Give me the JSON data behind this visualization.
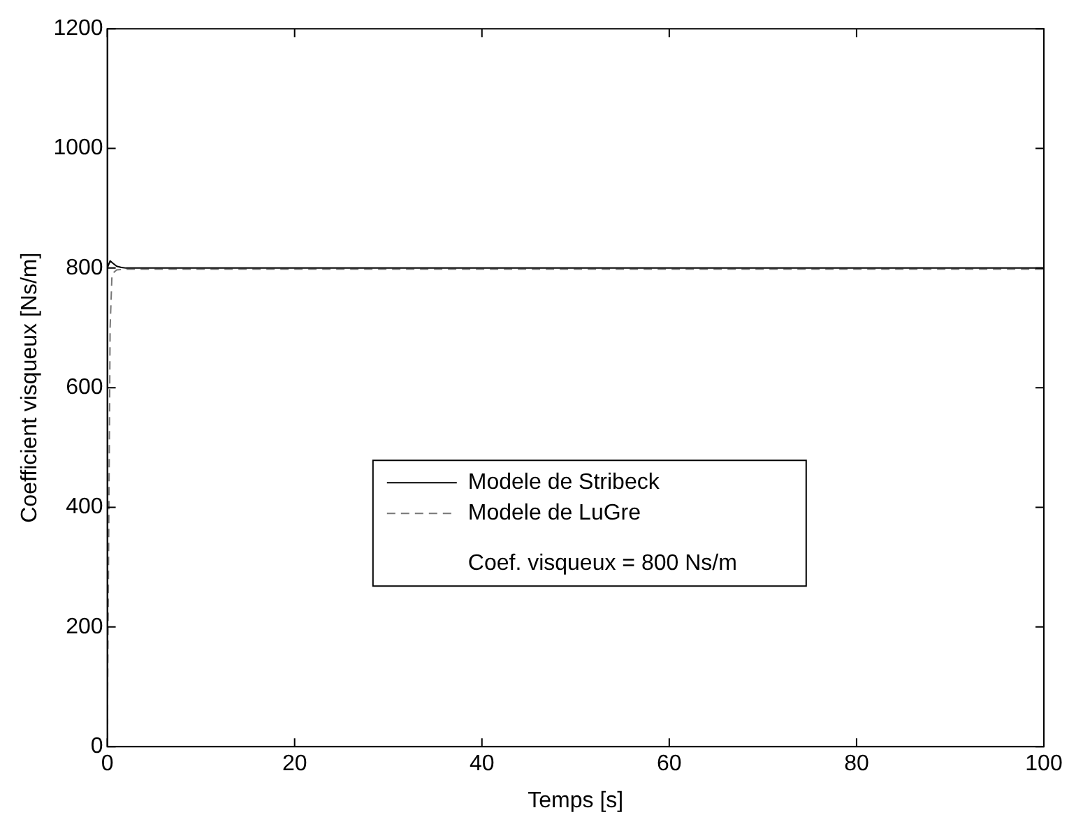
{
  "chart_data": {
    "type": "line",
    "xlabel": "Temps [s]",
    "ylabel": "Coefficient visqueux [Ns/m]",
    "xlim": [
      0,
      100
    ],
    "xticks": [
      0,
      20,
      40,
      60,
      80,
      100
    ],
    "ylim": [
      0,
      1200
    ],
    "yticks": [
      0,
      200,
      400,
      600,
      800,
      1000,
      1200
    ],
    "grid": false,
    "legend": "bottom",
    "marker": "none",
    "annotations": [
      "Coef. visqueux = 800 Ns/m"
    ],
    "series": [
      {
        "name": "Modele de Stribeck",
        "color": "#000000",
        "line_style": "solid",
        "x": [
          0,
          0.3,
          0.6,
          1,
          1.5,
          2,
          100
        ],
        "values": [
          800,
          812,
          808,
          803,
          801,
          800,
          800
        ]
      },
      {
        "name": "Modele de LuGre",
        "color": "#777777",
        "line_style": "dashed",
        "x": [
          0,
          0.3,
          0.5,
          1,
          2,
          100
        ],
        "values": [
          0,
          700,
          790,
          797,
          798,
          798
        ]
      }
    ]
  }
}
